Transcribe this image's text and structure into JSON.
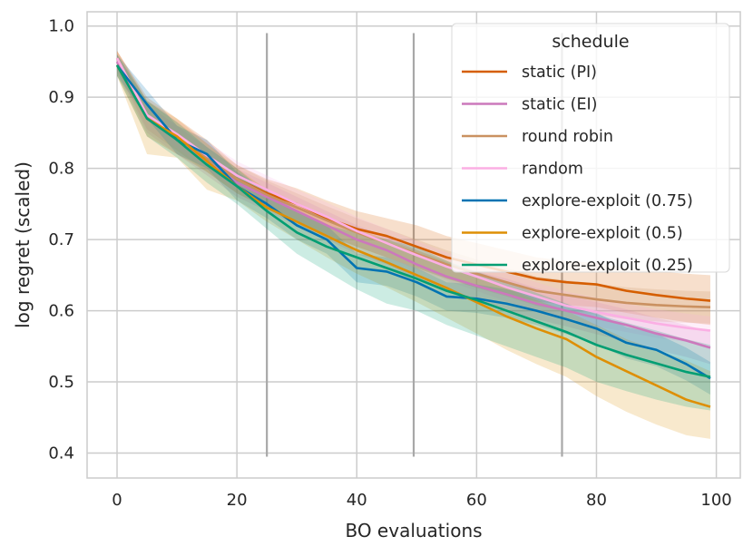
{
  "chart_data": {
    "type": "line",
    "title": "",
    "xlabel": "BO evaluations",
    "ylabel": "log regret (scaled)",
    "xlim": [
      -5,
      104
    ],
    "ylim": [
      0.365,
      1.02
    ],
    "xticks": [
      0,
      20,
      40,
      60,
      80,
      100
    ],
    "yticks": [
      0.4,
      0.5,
      0.6,
      0.7,
      0.8,
      0.9,
      1.0
    ],
    "xtick_labels": [
      "0",
      "20",
      "40",
      "60",
      "80",
      "100"
    ],
    "ytick_labels": [
      "0.4",
      "0.5",
      "0.6",
      "0.7",
      "0.8",
      "0.9",
      "1.0"
    ],
    "grid": true,
    "legend_title": "schedule",
    "legend_position": "top-right",
    "vlines": [
      {
        "x": 25,
        "ymin": 0.395,
        "ymax": 0.99
      },
      {
        "x": 49.5,
        "ymin": 0.395,
        "ymax": 0.99
      },
      {
        "x": 74.25,
        "ymin": 0.395,
        "ymax": 0.99
      }
    ],
    "series": [
      {
        "name": "static (PI)",
        "color": "#d55e00",
        "x": [
          0,
          5,
          10,
          15,
          20,
          25,
          30,
          35,
          40,
          45,
          50,
          55,
          60,
          65,
          70,
          75,
          80,
          85,
          90,
          95,
          99
        ],
        "y": [
          0.955,
          0.875,
          0.845,
          0.815,
          0.785,
          0.765,
          0.75,
          0.73,
          0.715,
          0.705,
          0.69,
          0.675,
          0.665,
          0.655,
          0.645,
          0.64,
          0.637,
          0.628,
          0.622,
          0.617,
          0.614
        ],
        "lower": [
          0.93,
          0.845,
          0.82,
          0.795,
          0.765,
          0.745,
          0.725,
          0.705,
          0.69,
          0.675,
          0.66,
          0.645,
          0.633,
          0.623,
          0.613,
          0.608,
          0.605,
          0.597,
          0.59,
          0.584,
          0.58
        ],
        "upper": [
          0.965,
          0.9,
          0.87,
          0.84,
          0.805,
          0.785,
          0.772,
          0.755,
          0.74,
          0.73,
          0.72,
          0.705,
          0.695,
          0.685,
          0.675,
          0.67,
          0.667,
          0.66,
          0.655,
          0.652,
          0.65
        ]
      },
      {
        "name": "static (EI)",
        "color": "#cc78bc",
        "x": [
          0,
          5,
          10,
          15,
          20,
          25,
          30,
          35,
          40,
          45,
          50,
          55,
          60,
          65,
          70,
          75,
          80,
          85,
          90,
          95,
          99
        ],
        "y": [
          0.95,
          0.87,
          0.84,
          0.81,
          0.78,
          0.76,
          0.74,
          0.72,
          0.7,
          0.685,
          0.665,
          0.648,
          0.635,
          0.623,
          0.61,
          0.6,
          0.59,
          0.58,
          0.568,
          0.558,
          0.548
        ],
        "lower": [
          0.935,
          0.85,
          0.82,
          0.79,
          0.76,
          0.74,
          0.72,
          0.7,
          0.68,
          0.665,
          0.645,
          0.628,
          0.615,
          0.6,
          0.588,
          0.578,
          0.567,
          0.557,
          0.545,
          0.535,
          0.525
        ],
        "upper": [
          0.96,
          0.89,
          0.86,
          0.83,
          0.8,
          0.78,
          0.76,
          0.74,
          0.72,
          0.705,
          0.685,
          0.668,
          0.655,
          0.645,
          0.632,
          0.622,
          0.612,
          0.602,
          0.59,
          0.58,
          0.57
        ]
      },
      {
        "name": "round robin",
        "color": "#ca9161",
        "x": [
          0,
          5,
          10,
          15,
          20,
          25,
          30,
          35,
          40,
          45,
          50,
          55,
          60,
          65,
          70,
          75,
          80,
          85,
          90,
          95,
          99
        ],
        "y": [
          0.955,
          0.875,
          0.845,
          0.815,
          0.785,
          0.763,
          0.745,
          0.727,
          0.71,
          0.695,
          0.68,
          0.665,
          0.652,
          0.64,
          0.628,
          0.622,
          0.616,
          0.611,
          0.608,
          0.606,
          0.605
        ],
        "lower": [
          0.94,
          0.855,
          0.825,
          0.795,
          0.765,
          0.743,
          0.725,
          0.707,
          0.69,
          0.675,
          0.66,
          0.645,
          0.632,
          0.62,
          0.607,
          0.6,
          0.594,
          0.588,
          0.585,
          0.583,
          0.582
        ],
        "upper": [
          0.965,
          0.895,
          0.865,
          0.835,
          0.805,
          0.783,
          0.765,
          0.747,
          0.73,
          0.715,
          0.7,
          0.685,
          0.672,
          0.66,
          0.648,
          0.643,
          0.638,
          0.633,
          0.63,
          0.628,
          0.627
        ]
      },
      {
        "name": "random",
        "color": "#fbafe4",
        "x": [
          0,
          5,
          10,
          15,
          20,
          25,
          30,
          35,
          40,
          45,
          50,
          55,
          60,
          65,
          70,
          75,
          80,
          85,
          90,
          95,
          99
        ],
        "y": [
          0.955,
          0.875,
          0.848,
          0.818,
          0.79,
          0.77,
          0.75,
          0.732,
          0.712,
          0.695,
          0.678,
          0.662,
          0.648,
          0.633,
          0.62,
          0.607,
          0.598,
          0.59,
          0.582,
          0.576,
          0.572
        ],
        "lower": [
          0.94,
          0.855,
          0.828,
          0.798,
          0.77,
          0.75,
          0.73,
          0.712,
          0.692,
          0.675,
          0.658,
          0.642,
          0.628,
          0.613,
          0.6,
          0.587,
          0.578,
          0.57,
          0.562,
          0.556,
          0.552
        ],
        "upper": [
          0.965,
          0.895,
          0.868,
          0.838,
          0.81,
          0.79,
          0.77,
          0.752,
          0.732,
          0.715,
          0.698,
          0.682,
          0.668,
          0.653,
          0.64,
          0.627,
          0.618,
          0.61,
          0.602,
          0.596,
          0.592
        ]
      },
      {
        "name": "explore-exploit (0.75)",
        "color": "#0173b2",
        "x": [
          0,
          5,
          10,
          15,
          20,
          25,
          30,
          35,
          40,
          45,
          50,
          55,
          60,
          65,
          70,
          75,
          80,
          85,
          90,
          95,
          99
        ],
        "y": [
          0.945,
          0.89,
          0.84,
          0.82,
          0.775,
          0.75,
          0.72,
          0.7,
          0.66,
          0.655,
          0.64,
          0.62,
          0.617,
          0.61,
          0.6,
          0.588,
          0.575,
          0.555,
          0.545,
          0.525,
          0.505
        ],
        "lower": [
          0.93,
          0.87,
          0.82,
          0.8,
          0.755,
          0.73,
          0.7,
          0.68,
          0.64,
          0.635,
          0.62,
          0.6,
          0.597,
          0.59,
          0.58,
          0.567,
          0.553,
          0.533,
          0.522,
          0.502,
          0.482
        ],
        "upper": [
          0.96,
          0.91,
          0.86,
          0.84,
          0.795,
          0.77,
          0.74,
          0.72,
          0.68,
          0.675,
          0.66,
          0.64,
          0.637,
          0.63,
          0.62,
          0.609,
          0.597,
          0.577,
          0.568,
          0.548,
          0.528
        ]
      },
      {
        "name": "explore-exploit (0.5)",
        "color": "#de8f05",
        "x": [
          0,
          5,
          10,
          15,
          20,
          25,
          30,
          35,
          40,
          45,
          50,
          55,
          60,
          65,
          70,
          75,
          80,
          85,
          90,
          95,
          99
        ],
        "y": [
          0.945,
          0.87,
          0.845,
          0.81,
          0.775,
          0.745,
          0.725,
          0.705,
          0.685,
          0.668,
          0.65,
          0.632,
          0.612,
          0.592,
          0.575,
          0.56,
          0.535,
          0.515,
          0.495,
          0.475,
          0.465
        ],
        "lower": [
          0.93,
          0.82,
          0.815,
          0.77,
          0.755,
          0.725,
          0.7,
          0.675,
          0.652,
          0.633,
          0.612,
          0.59,
          0.568,
          0.545,
          0.525,
          0.507,
          0.48,
          0.458,
          0.44,
          0.425,
          0.42
        ],
        "upper": [
          0.965,
          0.895,
          0.87,
          0.835,
          0.8,
          0.77,
          0.75,
          0.732,
          0.715,
          0.7,
          0.685,
          0.67,
          0.65,
          0.632,
          0.615,
          0.6,
          0.58,
          0.56,
          0.545,
          0.53,
          0.515
        ]
      },
      {
        "name": "explore-exploit (0.25)",
        "color": "#029e73",
        "x": [
          0,
          5,
          10,
          15,
          20,
          25,
          30,
          35,
          40,
          45,
          50,
          55,
          60,
          65,
          70,
          75,
          80,
          85,
          90,
          95,
          99
        ],
        "y": [
          0.945,
          0.87,
          0.84,
          0.805,
          0.775,
          0.74,
          0.71,
          0.69,
          0.675,
          0.66,
          0.645,
          0.628,
          0.615,
          0.6,
          0.585,
          0.57,
          0.552,
          0.538,
          0.526,
          0.514,
          0.507
        ],
        "lower": [
          0.93,
          0.845,
          0.815,
          0.78,
          0.75,
          0.715,
          0.68,
          0.655,
          0.63,
          0.61,
          0.6,
          0.58,
          0.565,
          0.55,
          0.535,
          0.52,
          0.5,
          0.487,
          0.475,
          0.465,
          0.46
        ],
        "upper": [
          0.96,
          0.895,
          0.865,
          0.83,
          0.8,
          0.765,
          0.74,
          0.72,
          0.71,
          0.7,
          0.69,
          0.67,
          0.655,
          0.64,
          0.625,
          0.61,
          0.595,
          0.583,
          0.572,
          0.56,
          0.552
        ]
      }
    ]
  }
}
